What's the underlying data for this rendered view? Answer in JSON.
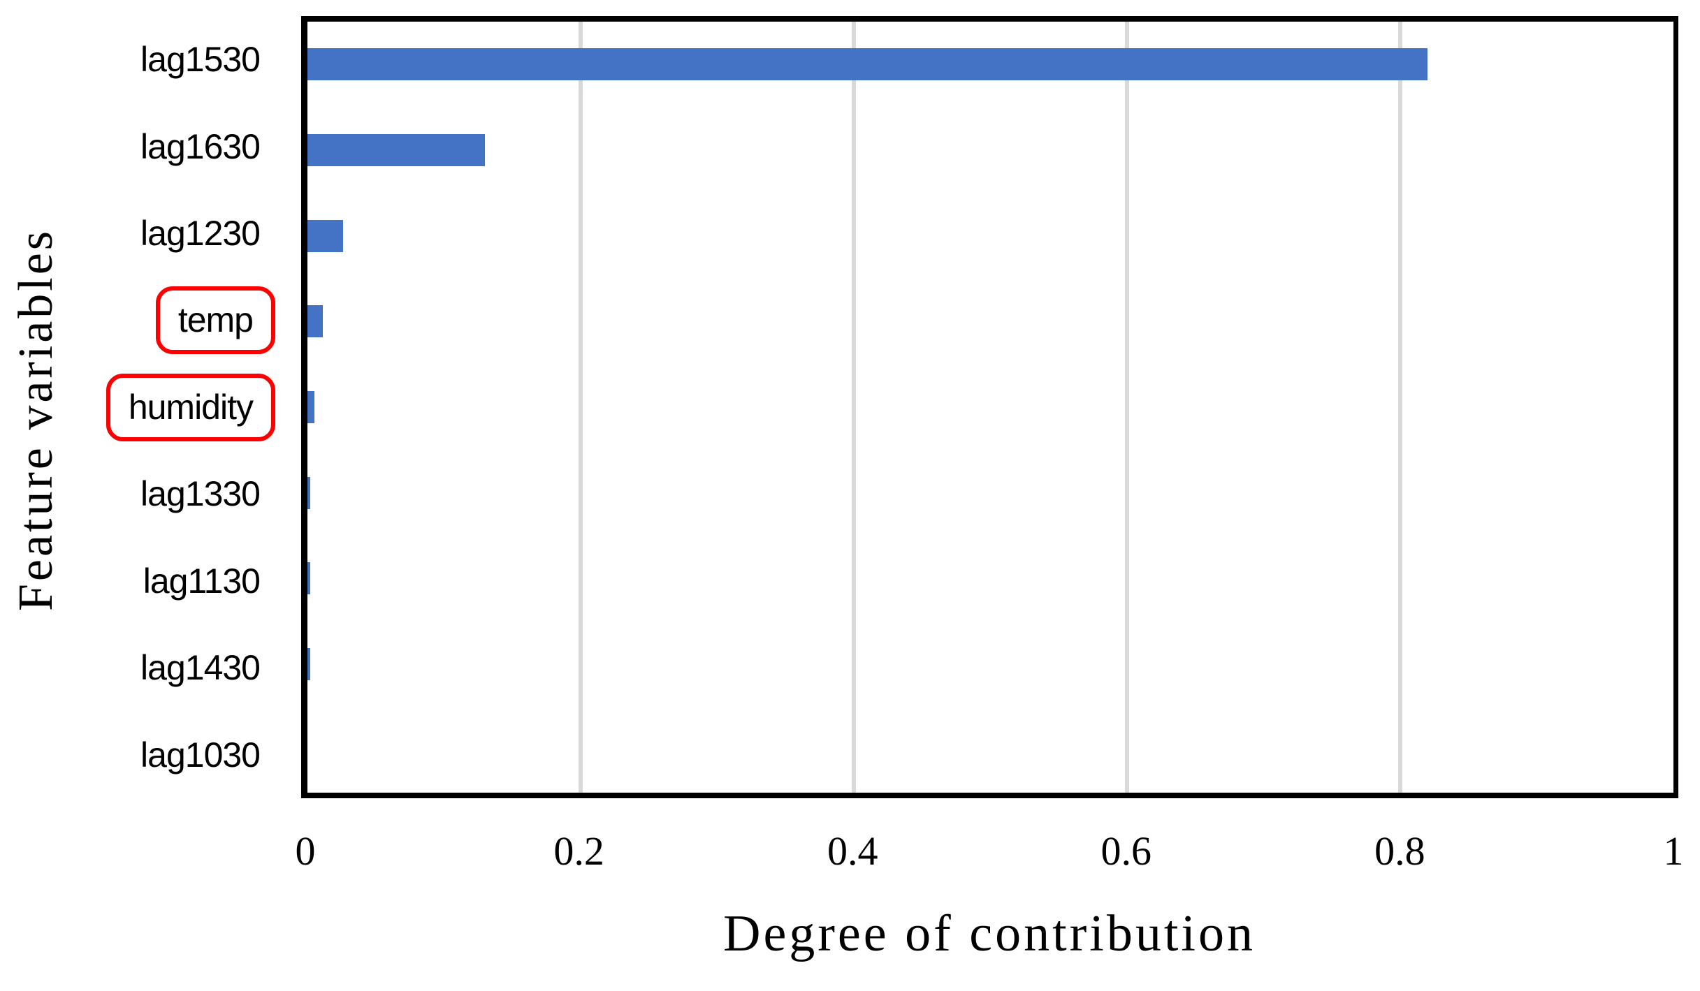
{
  "chart_data": {
    "type": "bar",
    "orientation": "horizontal",
    "title": "",
    "xlabel": "Degree of contribution",
    "ylabel": "Feature variables",
    "categories": [
      "lag1530",
      "lag1630",
      "lag1230",
      "temp",
      "humidity",
      "lag1330",
      "lag1130",
      "lag1430",
      "lag1030"
    ],
    "values": [
      0.82,
      0.13,
      0.026,
      0.011,
      0.005,
      0.002,
      0.002,
      0.002,
      0
    ],
    "highlighted_categories": [
      "temp",
      "humidity"
    ],
    "xlim": [
      0,
      1
    ],
    "x_ticks": [
      "0",
      "0.2",
      "0.4",
      "0.6",
      "0.8",
      "1"
    ],
    "x_tick_values": [
      0,
      0.2,
      0.4,
      0.6,
      0.8,
      1
    ],
    "grid": "vertical-gridlines-on",
    "legend": "none",
    "colors": {
      "bar": "#4472C4",
      "highlight_box": "#FF0000",
      "gridline": "#D9D9D9",
      "axis": "#000000",
      "background": "#FFFFFF",
      "text": "#000000"
    }
  }
}
